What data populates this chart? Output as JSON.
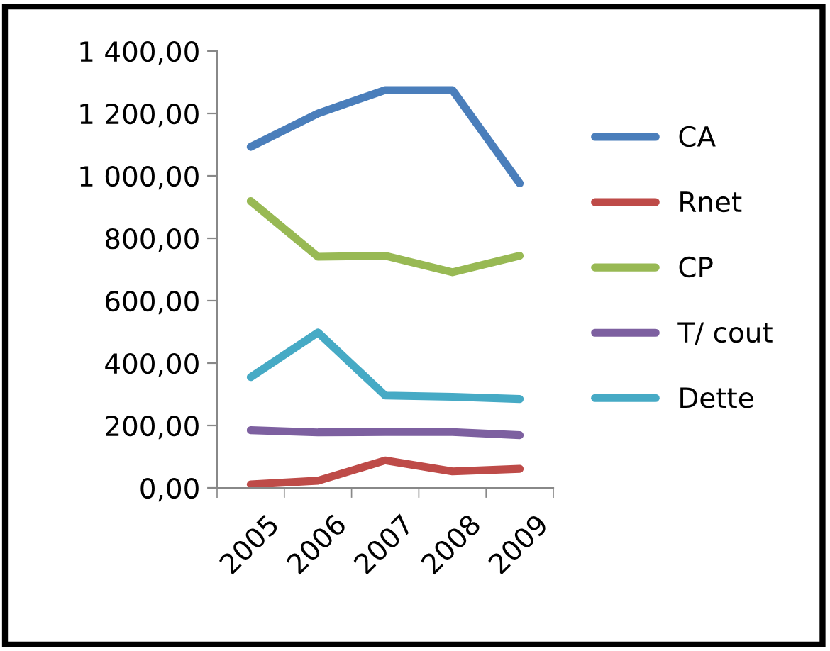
{
  "chart_data": {
    "type": "line",
    "categories": [
      "2005",
      "2006",
      "2007",
      "2008",
      "2009"
    ],
    "series": [
      {
        "name": "CA",
        "color": "#4a7ebb",
        "values": [
          1093,
          1200,
          1275,
          1275,
          976
        ]
      },
      {
        "name": "Rnet",
        "color": "#be4b48",
        "values": [
          11,
          23,
          88,
          53,
          61
        ]
      },
      {
        "name": "CP",
        "color": "#98b954",
        "values": [
          919,
          741,
          744,
          691,
          744
        ]
      },
      {
        "name": "T/ cout",
        "color": "#7d60a0",
        "values": [
          185,
          178,
          179,
          179,
          169
        ]
      },
      {
        "name": "Dette",
        "color": "#46aac5",
        "values": [
          355,
          498,
          296,
          292,
          285
        ]
      }
    ],
    "ylim": [
      0,
      1400
    ],
    "yticks": [
      {
        "value": 0,
        "label": "0,00"
      },
      {
        "value": 200,
        "label": "200,00"
      },
      {
        "value": 400,
        "label": "400,00"
      },
      {
        "value": 600,
        "label": "600,00"
      },
      {
        "value": 800,
        "label": "800,00"
      },
      {
        "value": 1000,
        "label": "1 000,00"
      },
      {
        "value": 1200,
        "label": "1 200,00"
      },
      {
        "value": 1400,
        "label": "1 400,00"
      }
    ],
    "grid": false,
    "legend": "right",
    "marker": "none",
    "line_style": "solid"
  }
}
